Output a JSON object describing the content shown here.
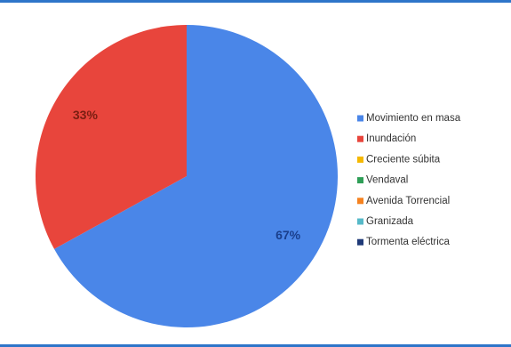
{
  "chart_data": {
    "type": "pie",
    "title": "",
    "categories": [
      "Movimiento en masa",
      "Inundación",
      "Creciente súbita",
      "Vendaval",
      "Avenida Torrencial",
      "Granizada",
      "Tormenta eléctrica"
    ],
    "values": [
      67,
      33,
      0,
      0,
      0,
      0,
      0
    ],
    "data_labels": [
      "67%",
      "33%",
      "",
      "",
      "",
      "",
      ""
    ],
    "colors": [
      "#4a86e8",
      "#e8453c",
      "#f5b800",
      "#2f9e57",
      "#f58220",
      "#56b9c8",
      "#1f3a78"
    ],
    "label_colors": [
      "#1a3f8c",
      "#7a1e12",
      "",
      "",
      "",
      "",
      ""
    ],
    "legend_position": "right"
  },
  "frame": {
    "accent_color": "#2e75c9"
  }
}
